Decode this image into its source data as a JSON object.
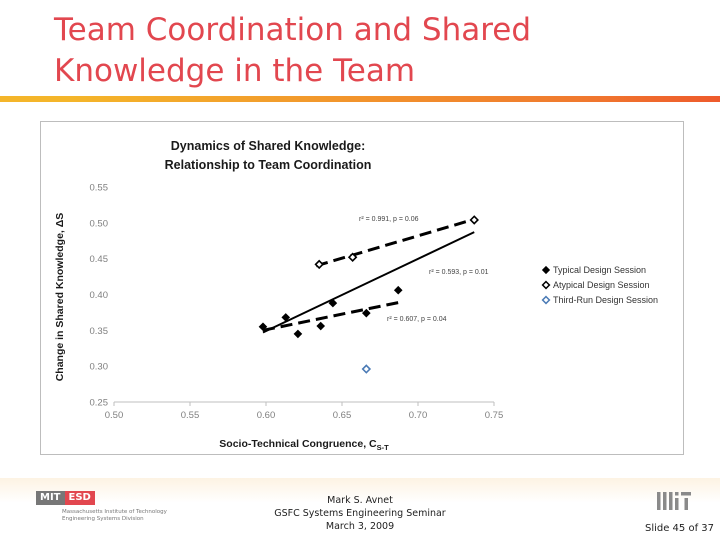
{
  "slide": {
    "title_line1": "Team Coordination and Shared",
    "title_line2": "Knowledge in the Team"
  },
  "chart_data": {
    "type": "scatter",
    "title_line1": "Dynamics of Shared Knowledge:",
    "title_line2": "Relationship to Team Coordination",
    "xlabel": "Socio-Technical Congruence, C",
    "xlabel_sub": "S-T",
    "ylabel": "Change in Shared Knowledge, ΔS",
    "xlim": [
      0.5,
      0.75
    ],
    "ylim": [
      0.25,
      0.55
    ],
    "xticks": [
      0.5,
      0.55,
      0.6,
      0.65,
      0.7,
      0.75
    ],
    "yticks": [
      0.25,
      0.3,
      0.35,
      0.4,
      0.45,
      0.5,
      0.55
    ],
    "xtick_labels": [
      "0.50",
      "0.55",
      "0.60",
      "0.65",
      "0.70",
      "0.75"
    ],
    "ytick_labels": [
      "0.25",
      "0.30",
      "0.35",
      "0.40",
      "0.45",
      "0.50",
      "0.55"
    ],
    "grid": false,
    "legend_position": "right",
    "series": [
      {
        "name": "Typical Design Session",
        "marker": "filled-diamond",
        "color": "#000000",
        "x": [
          0.598,
          0.613,
          0.621,
          0.644,
          0.636,
          0.666,
          0.687
        ],
        "y": [
          0.355,
          0.368,
          0.345,
          0.388,
          0.356,
          0.374,
          0.406
        ],
        "fit": {
          "x": [
            0.598,
            0.69
          ],
          "y": [
            0.35,
            0.39
          ],
          "style": "dashed",
          "r2_label": "r² = 0.607, p = 0.04"
        }
      },
      {
        "name": "Atypical Design Session",
        "marker": "open-diamond",
        "color": "#000000",
        "x": [
          0.635,
          0.657,
          0.737
        ],
        "y": [
          0.442,
          0.452,
          0.504
        ],
        "fit": {
          "x": [
            0.633,
            0.737
          ],
          "y": [
            0.44,
            0.505
          ],
          "style": "dashed",
          "r2_label": "r² = 0.991, p = 0.06"
        }
      },
      {
        "name": "Third-Run Design Session",
        "marker": "open-diamond",
        "color": "#4a7ab5",
        "x": [
          0.666
        ],
        "y": [
          0.296
        ]
      }
    ],
    "overall_fit": {
      "x": [
        0.598,
        0.737
      ],
      "y": [
        0.347,
        0.487
      ],
      "style": "solid",
      "r2_label": "r² = 0.593, p = 0.01"
    }
  },
  "footer": {
    "logo_mit": "MIT",
    "logo_esd": "ESD",
    "logo_line1": "Massachusetts Institute of Technology",
    "logo_line2": "Engineering Systems Division",
    "presenter": "Mark S. Avnet",
    "seminar": "GSFC Systems Engineering Seminar",
    "date": "March 3, 2009",
    "slide_number": "Slide 45 of 37"
  },
  "colors": {
    "title": "#e2474f",
    "rule_start": "#f4b52a",
    "rule_end": "#ee5a2c",
    "axis_tick": "#7f7f7f",
    "third_run": "#4a7ab5"
  }
}
